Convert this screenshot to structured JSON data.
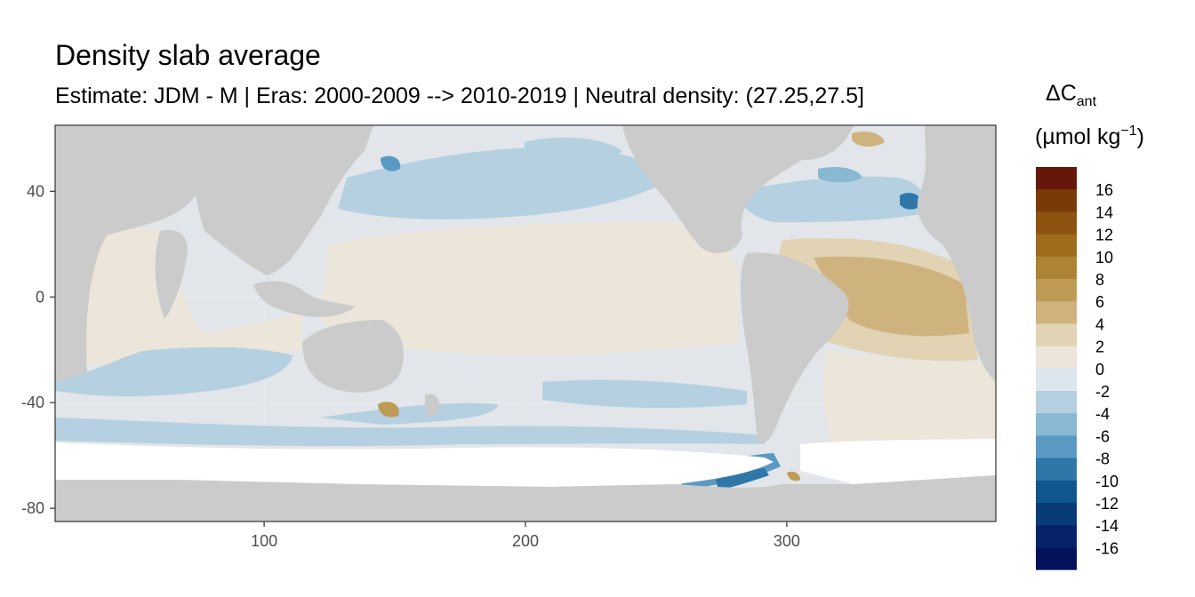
{
  "chart_data": {
    "type": "heatmap",
    "title": "Density slab average",
    "subtitle": "Estimate: JDM - M | Eras: 2000-2009 --> 2010-2019 | Neutral density: (27.25,27.5]",
    "xlabel": "",
    "ylabel": "",
    "xlim": [
      20,
      380
    ],
    "ylim": [
      -85,
      65
    ],
    "x_ticks": [
      100,
      200,
      300
    ],
    "y_ticks": [
      40,
      0,
      -40,
      -80
    ],
    "grid": "on",
    "legend": {
      "position": "right",
      "title_main": "ΔC",
      "title_sub": "ant",
      "title_unit": "(µmol kg",
      "title_unit_sup": "−1",
      "title_unit_close": ")",
      "bins": [
        {
          "label": "16",
          "color": "#67170a"
        },
        {
          "label": "14",
          "color": "#7a3a08"
        },
        {
          "label": "12",
          "color": "#8c5410"
        },
        {
          "label": "10",
          "color": "#9d6c1c"
        },
        {
          "label": "8",
          "color": "#ad8334"
        },
        {
          "label": "6",
          "color": "#bd9b55"
        },
        {
          "label": "4",
          "color": "#cfb37e"
        },
        {
          "label": "2",
          "color": "#e1d3b3"
        },
        {
          "label": "0",
          "color": "#ece6da"
        },
        {
          "label": "-2",
          "color": "#dce6ed"
        },
        {
          "label": "-4",
          "color": "#b5d0e0"
        },
        {
          "label": "-6",
          "color": "#88b8d2"
        },
        {
          "label": "-8",
          "color": "#5a9ac2"
        },
        {
          "label": "-10",
          "color": "#2e77a8"
        },
        {
          "label": "-12",
          "color": "#0f578e"
        },
        {
          "label": "-14",
          "color": "#073c78"
        },
        {
          "label": "-16",
          "color": "#05226a"
        }
      ],
      "end_color": "#03125a"
    },
    "colors": {
      "land": "#cbcbcb",
      "no_data": "#ffffff",
      "panel_border": "#333333",
      "grid": "#ebebeb"
    }
  }
}
